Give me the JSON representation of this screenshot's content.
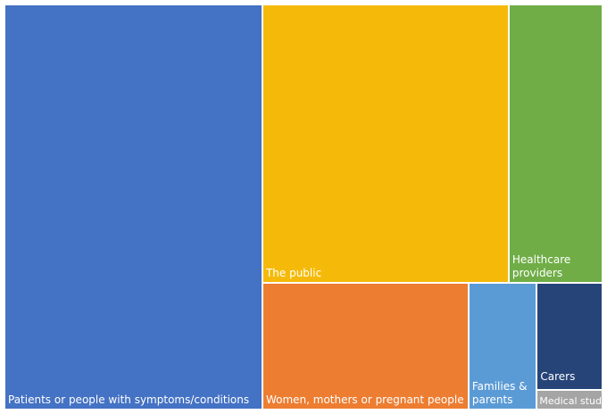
{
  "chart_data": {
    "type": "treemap",
    "title": "",
    "items": [
      {
        "label": "Patients or people with symptoms/conditions",
        "value": 128.0,
        "color": "#4472C4"
      },
      {
        "label": "The public",
        "value": 84.0,
        "color": "#F5BA09"
      },
      {
        "label": "Women, mothers or pregnant people",
        "value": 32.0,
        "color": "#ED7D31"
      },
      {
        "label": "Healthcare providers",
        "value": 32.0,
        "color": "#70AD47"
      },
      {
        "label": "Families & parents",
        "value": 10.6,
        "color": "#5B9BD5"
      },
      {
        "label": "Carers",
        "value": 8.6,
        "color": "#264478"
      },
      {
        "label": "Medical students",
        "value": 1.6,
        "color": "#A5A5A5"
      }
    ]
  }
}
